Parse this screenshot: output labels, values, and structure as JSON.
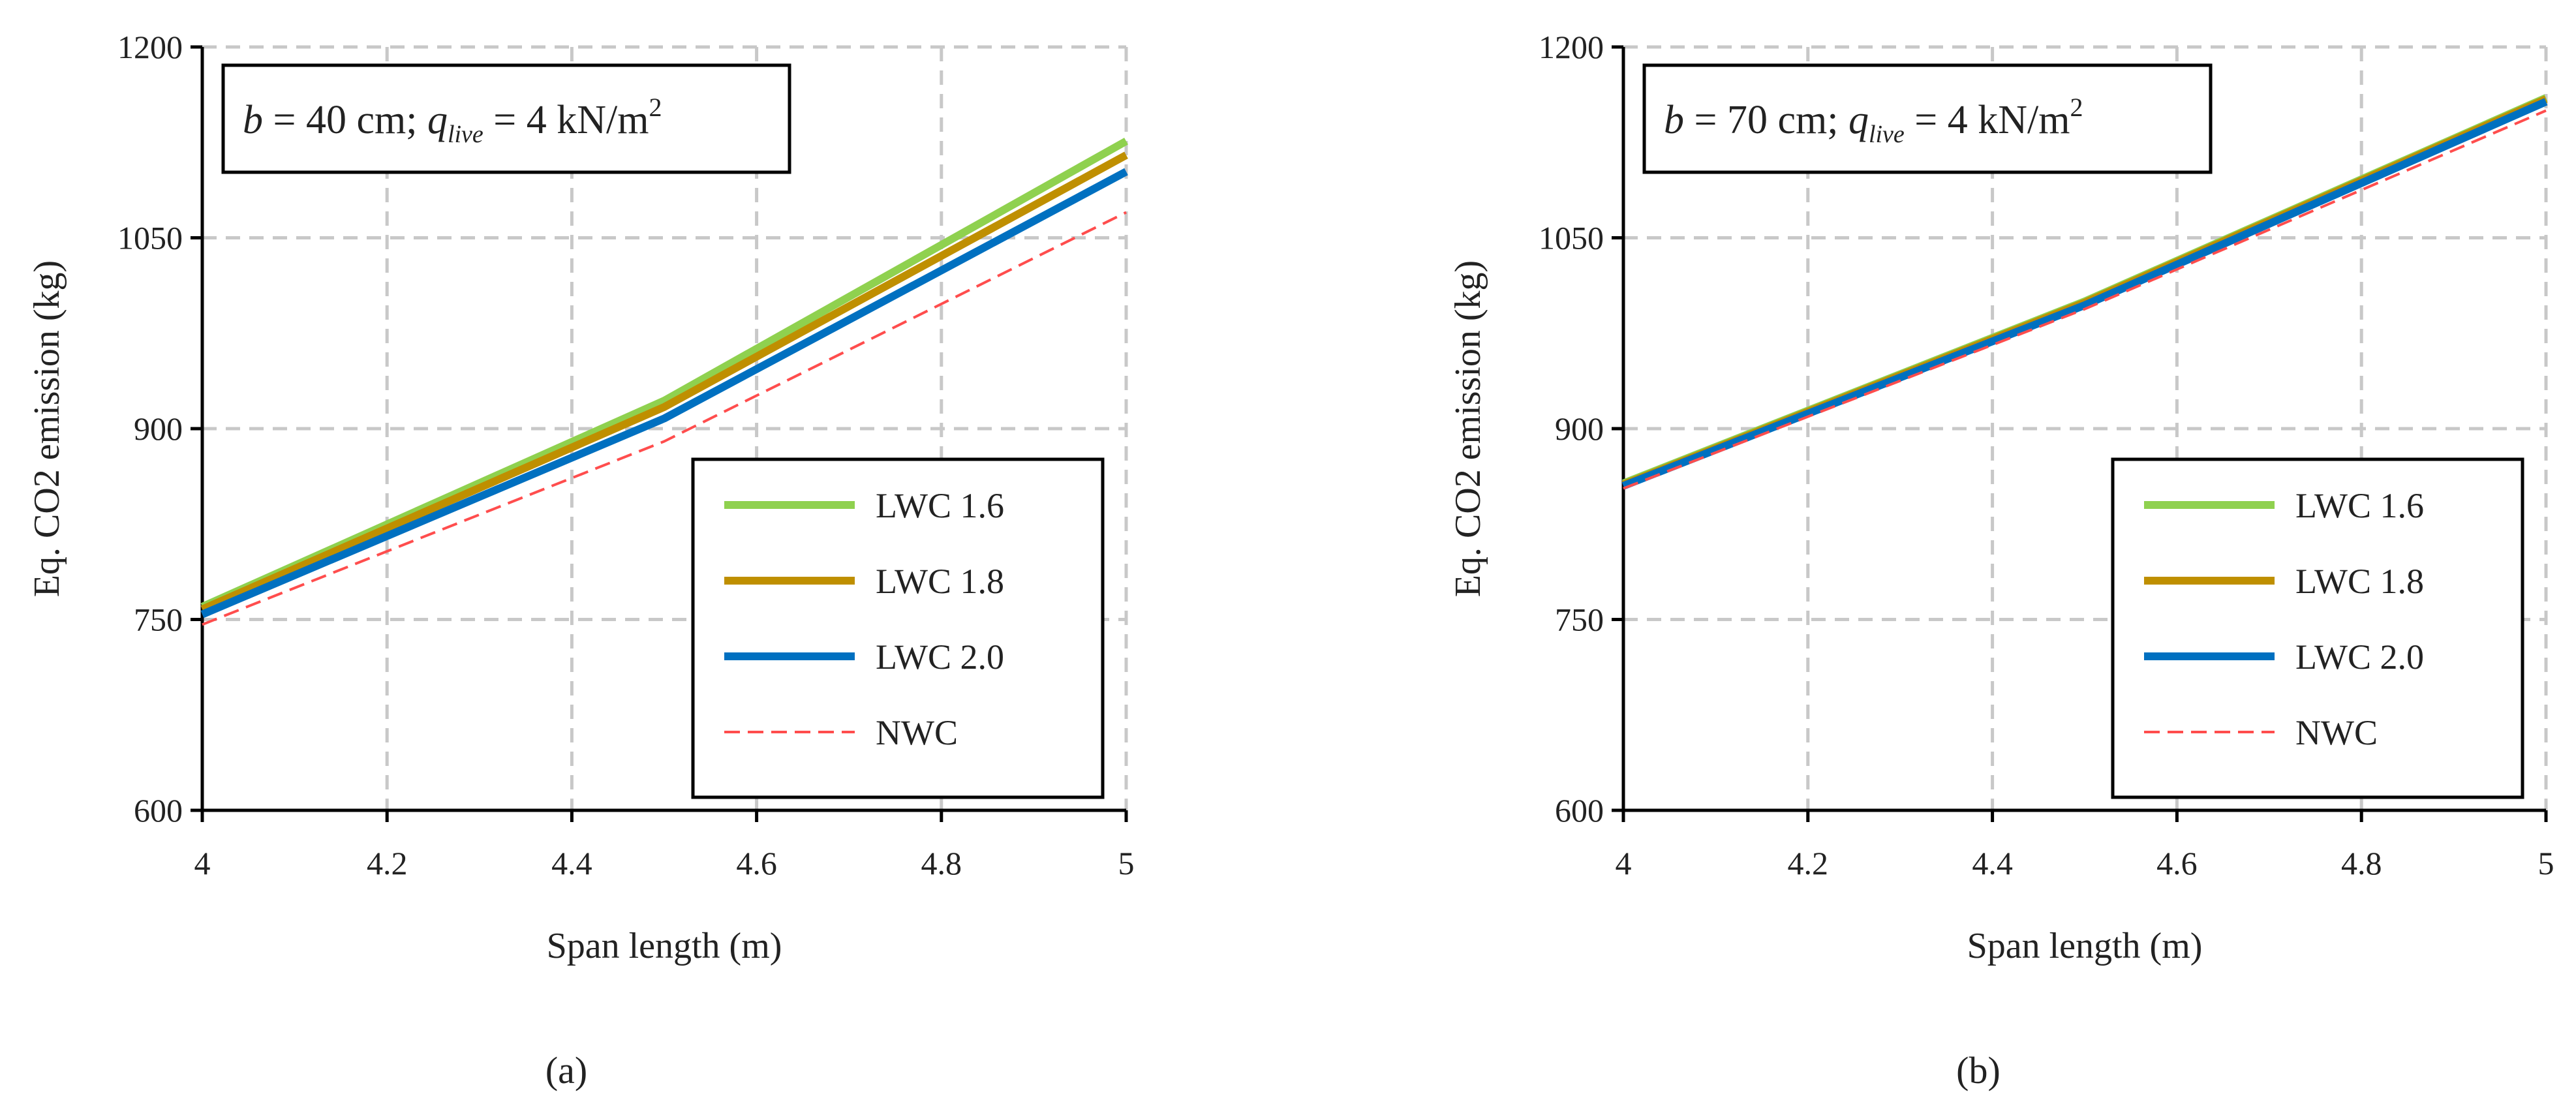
{
  "panels": [
    {
      "sublabel": "(a)",
      "annotation": {
        "b_label": "b",
        "b_text": " = 40 cm; ",
        "q_label": "q",
        "q_sub": "live",
        "q_text": " = 4 kN/m",
        "q_sup": "2"
      },
      "chart_data": {
        "type": "line",
        "xlabel": "Span length (m)",
        "ylabel": "Eq. CO2 emission (kg)",
        "xlim": [
          4,
          5
        ],
        "ylim": [
          600,
          1200
        ],
        "xticks": [
          4,
          4.2,
          4.4,
          4.6,
          4.8,
          5
        ],
        "xtick_labels": [
          "4",
          "4.2",
          "4.4",
          "4.6",
          "4.8",
          "5"
        ],
        "yticks": [
          600,
          750,
          900,
          1050,
          1200
        ],
        "ytick_labels": [
          "600",
          "750",
          "900",
          "1050",
          "1200"
        ],
        "grid": true,
        "legend_position": "bottom-right",
        "x": [
          4,
          4.5,
          5
        ],
        "series": [
          {
            "name": "LWC 1.6",
            "values": [
              760,
              922,
              1126
            ],
            "color": "#8fd14f",
            "style": "solid"
          },
          {
            "name": "LWC 1.8",
            "values": [
              758,
              917,
              1115
            ],
            "color": "#bf8f00",
            "style": "solid"
          },
          {
            "name": "LWC 2.0",
            "values": [
              754,
              908,
              1102
            ],
            "color": "#0070c0",
            "style": "solid"
          },
          {
            "name": "NWC",
            "values": [
              746,
              890,
              1070
            ],
            "color": "#ff4d4d",
            "style": "dashed"
          }
        ]
      }
    },
    {
      "sublabel": "(b)",
      "annotation": {
        "b_label": "b",
        "b_text": " = 70 cm; ",
        "q_label": "q",
        "q_sub": "live",
        "q_text": " = 4 kN/m",
        "q_sup": "2"
      },
      "chart_data": {
        "type": "line",
        "xlabel": "Span length (m)",
        "ylabel": "Eq. CO2 emission (kg)",
        "xlim": [
          4,
          5
        ],
        "ylim": [
          600,
          1200
        ],
        "xticks": [
          4,
          4.2,
          4.4,
          4.6,
          4.8,
          5
        ],
        "xtick_labels": [
          "4",
          "4.2",
          "4.4",
          "4.6",
          "4.8",
          "5"
        ],
        "yticks": [
          600,
          750,
          900,
          1050,
          1200
        ],
        "ytick_labels": [
          "600",
          "750",
          "900",
          "1050",
          "1200"
        ],
        "grid": true,
        "legend_position": "bottom-right",
        "x": [
          4,
          4.5,
          5
        ],
        "series": [
          {
            "name": "LWC 1.6",
            "values": [
              857,
              1000,
              1160
            ],
            "color": "#8fd14f",
            "style": "solid"
          },
          {
            "name": "LWC 1.8",
            "values": [
              856,
              999,
              1159
            ],
            "color": "#bf8f00",
            "style": "solid"
          },
          {
            "name": "LWC 2.0",
            "values": [
              855,
              997,
              1157
            ],
            "color": "#0070c0",
            "style": "solid"
          },
          {
            "name": "NWC",
            "values": [
              853,
              994,
              1150
            ],
            "color": "#ff4d4d",
            "style": "dashed"
          }
        ]
      }
    }
  ]
}
